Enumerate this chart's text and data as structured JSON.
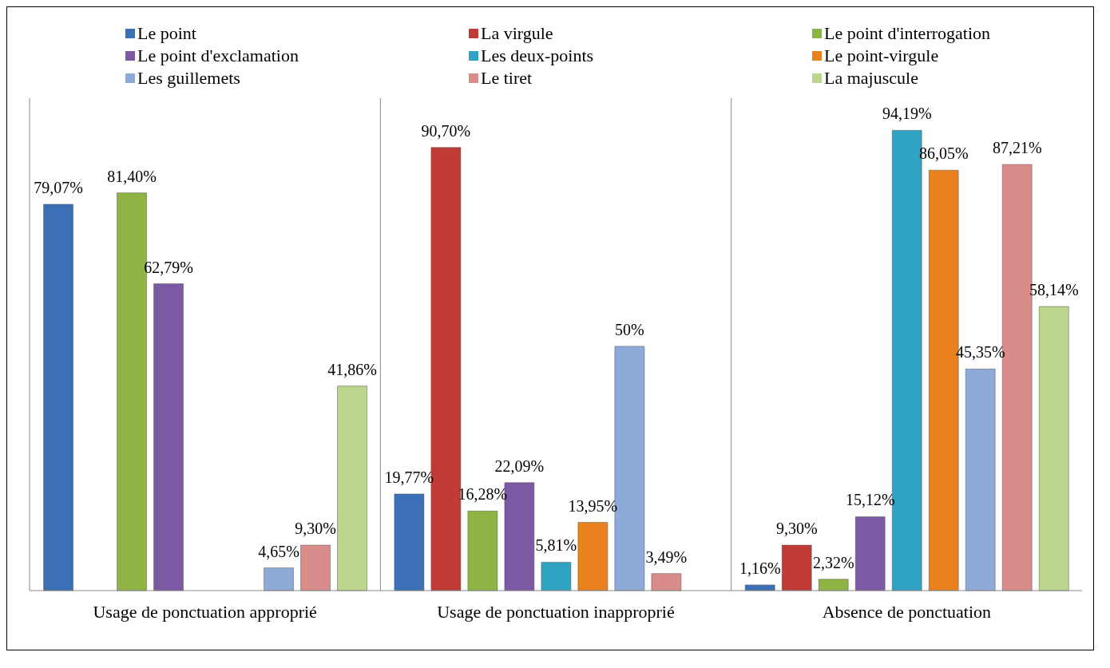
{
  "chart_data": {
    "type": "bar",
    "categories": [
      "Usage de ponctuation approprié",
      "Usage de ponctuation inapproprié",
      "Absence de ponctuation"
    ],
    "series": [
      {
        "name": "Le point",
        "color": "#3b70b6",
        "values": [
          79.07,
          19.77,
          1.16
        ],
        "value_labels": [
          "79,07%",
          "19,77%",
          "1,16%"
        ]
      },
      {
        "name": "La virgule",
        "color": "#c03a36",
        "values": [
          null,
          90.7,
          9.3
        ],
        "value_labels": [
          null,
          "90,70%",
          "9,30%"
        ]
      },
      {
        "name": "Le point d'interrogation",
        "color": "#8fb443",
        "values": [
          81.4,
          16.28,
          2.32
        ],
        "value_labels": [
          "81,40%",
          "16,28%",
          "2,32%"
        ]
      },
      {
        "name": "Le point d'exclamation",
        "color": "#7b5aa3",
        "values": [
          62.79,
          22.09,
          15.12
        ],
        "value_labels": [
          "62,79%",
          "22,09%",
          "15,12%"
        ]
      },
      {
        "name": "Les deux-points",
        "color": "#31a3c2",
        "values": [
          null,
          5.81,
          94.19
        ],
        "value_labels": [
          null,
          "5,81%",
          "94,19%"
        ]
      },
      {
        "name": "Le point-virgule",
        "color": "#e9811f",
        "values": [
          null,
          13.95,
          86.05
        ],
        "value_labels": [
          null,
          "13,95%",
          "86,05%"
        ]
      },
      {
        "name": "Les guillemets",
        "color": "#8eaad8",
        "values": [
          4.65,
          50,
          45.35
        ],
        "value_labels": [
          "4,65%",
          "50%",
          "45,35%"
        ]
      },
      {
        "name": "Le tiret",
        "color": "#d98c8a",
        "values": [
          9.3,
          3.49,
          87.21
        ],
        "value_labels": [
          "9,30%",
          "3,49%",
          "87,21%"
        ]
      },
      {
        "name": "La majuscule",
        "color": "#bcd68e",
        "values": [
          41.86,
          null,
          58.14
        ],
        "value_labels": [
          "41,86%",
          null,
          "58,14%"
        ]
      }
    ],
    "legend": "top",
    "grid": "x"
  }
}
